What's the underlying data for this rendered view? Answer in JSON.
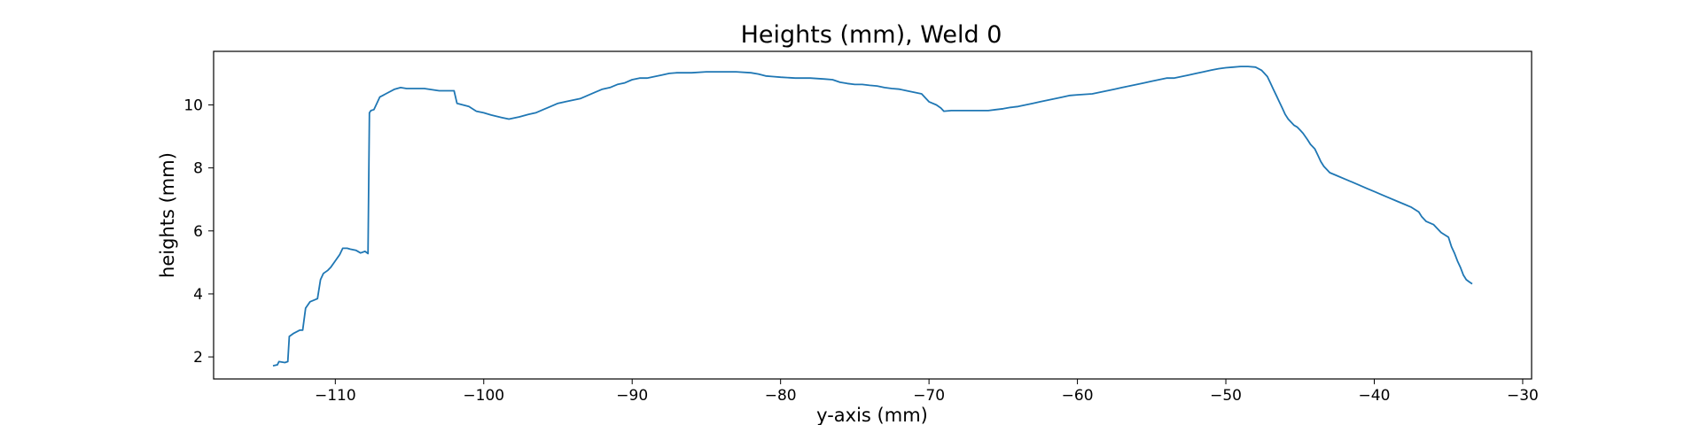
{
  "chart_data": {
    "type": "line",
    "title": "Heights (mm), Weld 0",
    "xlabel": "y-axis (mm)",
    "ylabel": "heights (mm)",
    "xlim": [
      -118.2,
      -29.4
    ],
    "ylim": [
      1.3,
      11.7
    ],
    "xticks": [
      -110,
      -100,
      -90,
      -80,
      -70,
      -60,
      -50,
      -40,
      -30
    ],
    "xtick_labels": [
      "−110",
      "−100",
      "−90",
      "−80",
      "−70",
      "−60",
      "−50",
      "−40",
      "−30"
    ],
    "yticks": [
      2,
      4,
      6,
      8,
      10
    ],
    "ytick_labels": [
      "2",
      "4",
      "6",
      "8",
      "10"
    ],
    "grid": false,
    "line_color": "#1f77b4",
    "series": [
      {
        "x": [
          -114.2,
          -113.9,
          -113.8,
          -113.4,
          -113.2,
          -113.1,
          -112.8,
          -112.4,
          -112.2,
          -112.0,
          -111.7,
          -111.2,
          -111.0,
          -110.8,
          -110.5,
          -110.3,
          -110.0,
          -109.7,
          -109.5,
          -109.2,
          -109.0,
          -108.6,
          -108.3,
          -108.0,
          -107.8,
          -107.7,
          -107.6,
          -107.4,
          -107.0,
          -106.8,
          -106.6,
          -106.0,
          -105.6,
          -105.2,
          -104.0,
          -103.0,
          -102.0,
          -101.8,
          -101.0,
          -100.5,
          -100.0,
          -99.5,
          -98.8,
          -98.3,
          -97.6,
          -97.0,
          -96.5,
          -96.0,
          -95.5,
          -95.0,
          -94.5,
          -94.0,
          -93.5,
          -93.0,
          -92.5,
          -92.0,
          -91.5,
          -91.0,
          -90.5,
          -90.0,
          -89.5,
          -89.0,
          -88.5,
          -88.0,
          -87.5,
          -87.0,
          -86.0,
          -85.0,
          -84.0,
          -83.0,
          -82.0,
          -81.5,
          -81.0,
          -80.5,
          -80.0,
          -79.0,
          -78.0,
          -77.0,
          -76.5,
          -76.0,
          -75.5,
          -75.0,
          -74.5,
          -74.0,
          -73.5,
          -73.0,
          -72.5,
          -72.0,
          -71.5,
          -71.0,
          -70.5,
          -70.0,
          -69.5,
          -69.2,
          -69.0,
          -68.5,
          -68.0,
          -67.0,
          -66.0,
          -65.5,
          -65.0,
          -64.5,
          -64.0,
          -63.5,
          -63.0,
          -62.5,
          -62.0,
          -61.5,
          -61.0,
          -60.5,
          -60.0,
          -59.0,
          -58.5,
          -58.0,
          -57.5,
          -57.0,
          -56.5,
          -56.0,
          -55.5,
          -55.0,
          -54.5,
          -54.0,
          -53.5,
          -53.0,
          -52.5,
          -52.0,
          -51.5,
          -51.0,
          -50.5,
          -50.0,
          -49.5,
          -49.0,
          -48.5,
          -48.0,
          -47.6,
          -47.4,
          -47.2,
          -47.0,
          -46.8,
          -46.6,
          -46.4,
          -46.2,
          -46.0,
          -45.8,
          -45.6,
          -45.4,
          -45.2,
          -45.0,
          -44.8,
          -44.5,
          -44.3,
          -44.0,
          -43.8,
          -43.6,
          -43.4,
          -43.2,
          -43.0,
          -42.5,
          -42.0,
          -41.5,
          -41.0,
          -40.5,
          -40.0,
          -39.5,
          -39.0,
          -38.5,
          -38.0,
          -37.5,
          -37.0,
          -36.8,
          -36.5,
          -36.0,
          -35.8,
          -35.5,
          -35.0,
          -34.8,
          -34.6,
          -34.4,
          -34.2,
          -34.0,
          -33.8,
          -33.6,
          -33.4
        ],
        "y": [
          1.72,
          1.75,
          1.85,
          1.82,
          1.85,
          2.65,
          2.75,
          2.85,
          2.85,
          3.55,
          3.75,
          3.85,
          4.45,
          4.65,
          4.75,
          4.85,
          5.05,
          5.25,
          5.45,
          5.45,
          5.42,
          5.38,
          5.3,
          5.35,
          5.28,
          9.75,
          9.82,
          9.85,
          10.25,
          10.3,
          10.35,
          10.5,
          10.55,
          10.52,
          10.52,
          10.45,
          10.45,
          10.05,
          9.95,
          9.8,
          9.75,
          9.68,
          9.6,
          9.55,
          9.62,
          9.7,
          9.75,
          9.85,
          9.95,
          10.05,
          10.1,
          10.15,
          10.2,
          10.3,
          10.4,
          10.5,
          10.55,
          10.65,
          10.7,
          10.8,
          10.85,
          10.85,
          10.9,
          10.95,
          11.0,
          11.02,
          11.02,
          11.05,
          11.05,
          11.05,
          11.02,
          10.98,
          10.92,
          10.9,
          10.88,
          10.85,
          10.85,
          10.82,
          10.8,
          10.72,
          10.68,
          10.65,
          10.65,
          10.62,
          10.6,
          10.55,
          10.52,
          10.5,
          10.45,
          10.4,
          10.35,
          10.1,
          10.0,
          9.9,
          9.8,
          9.82,
          9.82,
          9.82,
          9.82,
          9.85,
          9.88,
          9.92,
          9.95,
          10.0,
          10.05,
          10.1,
          10.15,
          10.2,
          10.25,
          10.3,
          10.32,
          10.35,
          10.4,
          10.45,
          10.5,
          10.55,
          10.6,
          10.65,
          10.7,
          10.75,
          10.8,
          10.85,
          10.85,
          10.9,
          10.95,
          11.0,
          11.05,
          11.1,
          11.15,
          11.18,
          11.2,
          11.22,
          11.22,
          11.2,
          11.1,
          11.0,
          10.9,
          10.7,
          10.5,
          10.3,
          10.1,
          9.9,
          9.7,
          9.55,
          9.45,
          9.35,
          9.3,
          9.2,
          9.1,
          8.9,
          8.75,
          8.6,
          8.4,
          8.2,
          8.05,
          7.95,
          7.85,
          7.75,
          7.65,
          7.55,
          7.45,
          7.35,
          7.25,
          7.15,
          7.05,
          6.95,
          6.85,
          6.75,
          6.6,
          6.45,
          6.3,
          6.2,
          6.1,
          5.95,
          5.8,
          5.5,
          5.3,
          5.05,
          4.85,
          4.6,
          4.45,
          4.38,
          4.32
        ]
      }
    ]
  }
}
